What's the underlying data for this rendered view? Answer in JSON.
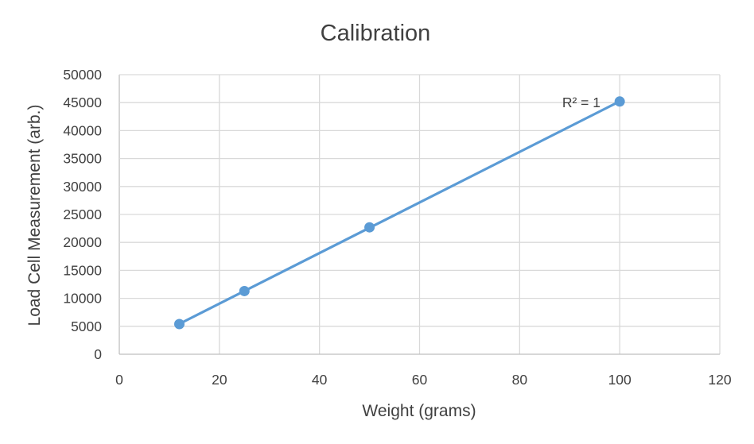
{
  "chart_data": {
    "type": "scatter",
    "title": "Calibration",
    "xlabel": "Weight (grams)",
    "ylabel": "Load Cell Measurement (arb.)",
    "xlim": [
      0,
      120
    ],
    "ylim": [
      0,
      50000
    ],
    "x_ticks": [
      "0",
      "20",
      "40",
      "60",
      "80",
      "100",
      "120"
    ],
    "y_ticks": [
      "0",
      "5000",
      "10000",
      "15000",
      "20000",
      "25000",
      "30000",
      "35000",
      "40000",
      "45000",
      "50000"
    ],
    "grid": true,
    "series": [
      {
        "x": [
          12,
          25,
          50,
          100
        ],
        "y": [
          5400,
          11300,
          22700,
          45200
        ],
        "color": "#5b9bd5",
        "trendline": "linear"
      }
    ],
    "annotation": "R² = 1"
  }
}
